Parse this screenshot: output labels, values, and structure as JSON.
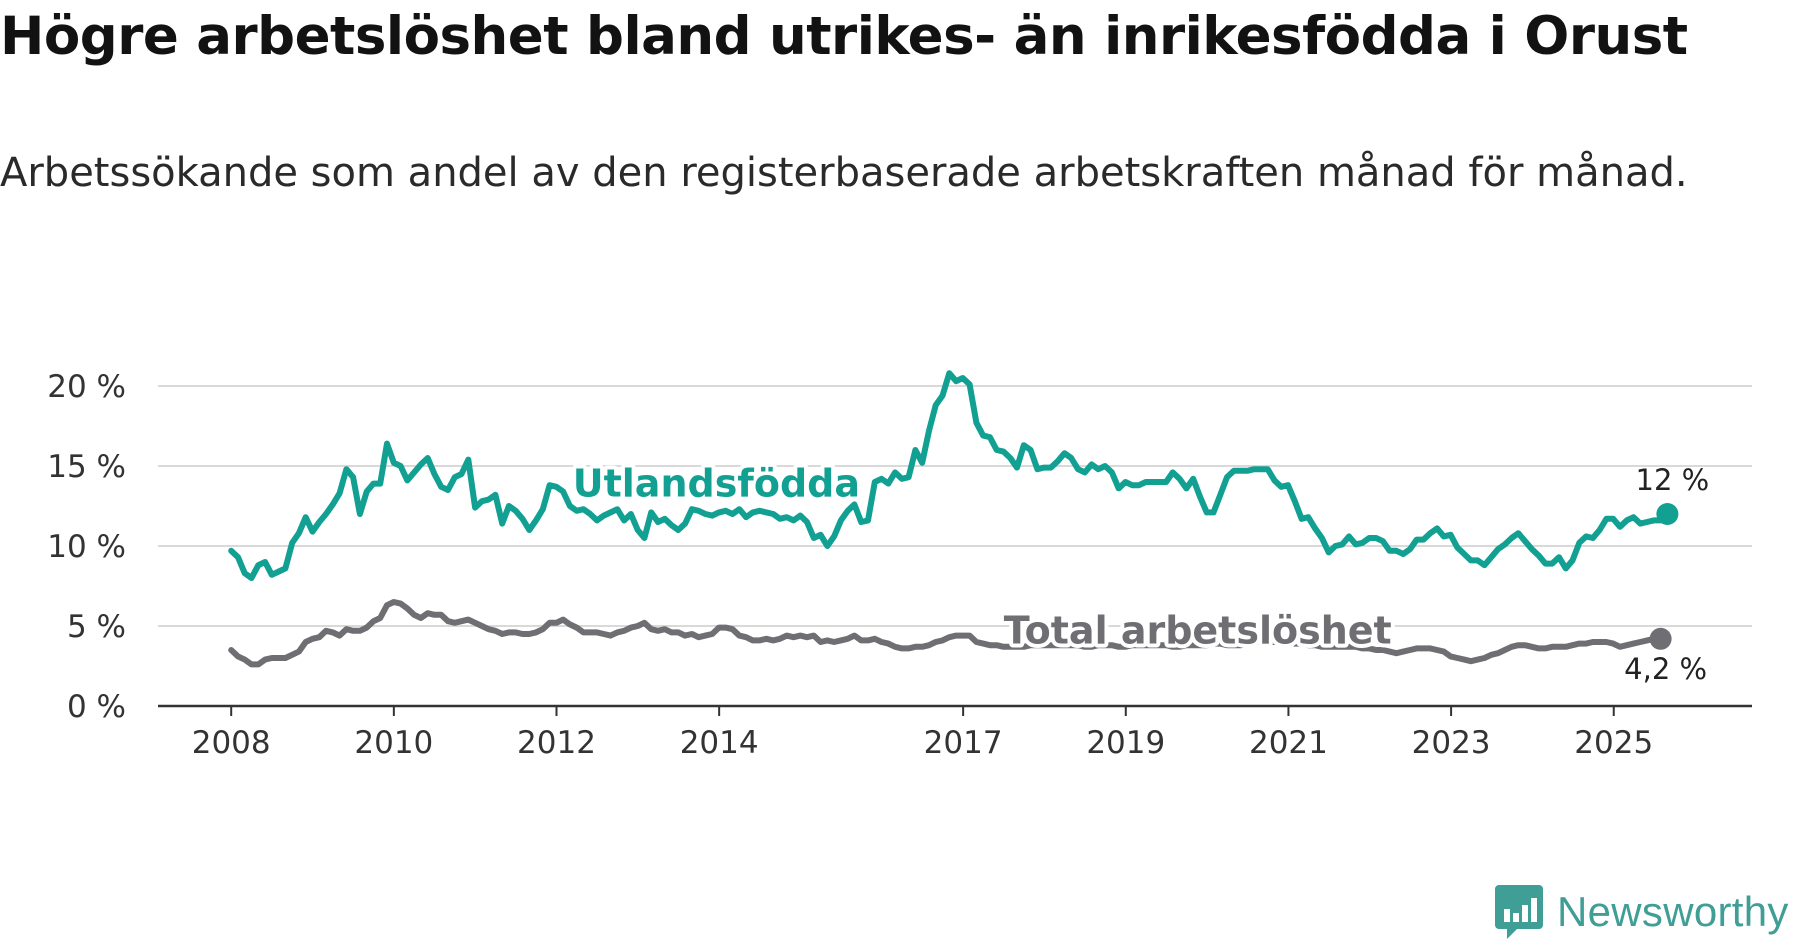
{
  "title": "Högre arbetslöshet bland utrikes- än inrikesfödda i Orust",
  "subtitle": "Arbetssökande som andel av den registerbaserade arbetskraften månad för månad.",
  "brand": {
    "name": "Newsworthy",
    "icon": "newsworthy-logo-icon"
  },
  "colors": {
    "foreign": "#12a093",
    "total": "#6f6e73",
    "grid": "#d9d9d9",
    "axis": "#333333"
  },
  "chart_data": {
    "type": "line",
    "title": "Högre arbetslöshet bland utrikes- än inrikesfödda i Orust",
    "xlabel": "",
    "ylabel": "",
    "x_start": 2008.0,
    "x_step": 0.0833,
    "xlim": [
      2007.1,
      2026.7
    ],
    "ylim": [
      0,
      20
    ],
    "y_ticks": [
      0,
      5,
      10,
      15,
      20
    ],
    "y_tick_labels": [
      "0 %",
      "5 %",
      "10 %",
      "15 %",
      "20 %"
    ],
    "x_ticks": [
      2008,
      2010,
      2012,
      2014,
      2017,
      2019,
      2021,
      2023,
      2025
    ],
    "x_tick_labels": [
      "2008",
      "2010",
      "2012",
      "2014",
      "2017",
      "2019",
      "2021",
      "2023",
      "2025"
    ],
    "grid": true,
    "series": [
      {
        "name": "Utlandsfödda",
        "label": "Utlandsfödda",
        "end_label": "12 %",
        "values": [
          9.7,
          9.3,
          8.3,
          8.0,
          8.8,
          9.0,
          8.2,
          8.4,
          8.6,
          10.2,
          10.8,
          11.8,
          10.9,
          11.5,
          12.0,
          12.6,
          13.3,
          14.8,
          14.3,
          12.0,
          13.4,
          13.9,
          13.9,
          16.4,
          15.2,
          15.0,
          14.1,
          14.6,
          15.1,
          15.5,
          14.5,
          13.7,
          13.5,
          14.3,
          14.5,
          15.4,
          12.4,
          12.8,
          12.9,
          13.2,
          11.4,
          12.5,
          12.2,
          11.7,
          11.0,
          11.6,
          12.3,
          13.8,
          13.7,
          13.4,
          12.5,
          12.2,
          12.3,
          12.0,
          11.6,
          11.9,
          12.1,
          12.3,
          11.6,
          12.0,
          11.0,
          10.5,
          12.1,
          11.5,
          11.7,
          11.3,
          11.0,
          11.4,
          12.3,
          12.2,
          12.0,
          11.9,
          12.1,
          12.2,
          12.0,
          12.3,
          11.8,
          12.1,
          12.2,
          12.1,
          12.0,
          11.7,
          11.8,
          11.6,
          11.9,
          11.5,
          10.5,
          10.7,
          10.0,
          10.6,
          11.6,
          12.2,
          12.6,
          11.5,
          11.6,
          14.0,
          14.2,
          13.9,
          14.6,
          14.2,
          14.3,
          16.0,
          15.2,
          17.2,
          18.8,
          19.4,
          20.8,
          20.3,
          20.5,
          20.1,
          17.7,
          16.9,
          16.8,
          16.0,
          15.9,
          15.5,
          14.9,
          16.3,
          16.0,
          14.8,
          14.9,
          14.9,
          15.3,
          15.8,
          15.5,
          14.8,
          14.6,
          15.1,
          14.8,
          15.0,
          14.6,
          13.6,
          14.0,
          13.8,
          13.8,
          14.0,
          14.0,
          14.0,
          14.0,
          14.6,
          14.2,
          13.6,
          14.2,
          13.1,
          12.1,
          12.1,
          13.2,
          14.3,
          14.7,
          14.7,
          14.7,
          14.8,
          14.8,
          14.8,
          14.1,
          13.7,
          13.8,
          12.8,
          11.7,
          11.8,
          11.1,
          10.5,
          9.6,
          10.0,
          10.1,
          10.6,
          10.1,
          10.2,
          10.5,
          10.5,
          10.3,
          9.7,
          9.7,
          9.5,
          9.8,
          10.4,
          10.4,
          10.8,
          11.1,
          10.6,
          10.7,
          9.9,
          9.5,
          9.1,
          9.1,
          8.8,
          9.3,
          9.8,
          10.1,
          10.5,
          10.8,
          10.3,
          9.8,
          9.4,
          8.9,
          8.9,
          9.3,
          8.6,
          9.1,
          10.2,
          10.6,
          10.5,
          11.0,
          11.7,
          11.7,
          11.2,
          11.6,
          11.8,
          11.4,
          11.5,
          11.6,
          11.6,
          12.0
        ]
      },
      {
        "name": "Total arbetslöshet",
        "label": "Total arbetslöshet",
        "end_label": "4,2 %",
        "values": [
          3.5,
          3.1,
          2.9,
          2.6,
          2.6,
          2.9,
          3.0,
          3.0,
          3.0,
          3.2,
          3.4,
          4.0,
          4.2,
          4.3,
          4.7,
          4.6,
          4.4,
          4.8,
          4.7,
          4.7,
          4.9,
          5.3,
          5.5,
          6.3,
          6.5,
          6.4,
          6.1,
          5.7,
          5.5,
          5.8,
          5.7,
          5.7,
          5.3,
          5.2,
          5.3,
          5.4,
          5.2,
          5.0,
          4.8,
          4.7,
          4.5,
          4.6,
          4.6,
          4.5,
          4.5,
          4.6,
          4.8,
          5.2,
          5.2,
          5.4,
          5.1,
          4.9,
          4.6,
          4.6,
          4.6,
          4.5,
          4.4,
          4.6,
          4.7,
          4.9,
          5.0,
          5.2,
          4.8,
          4.7,
          4.8,
          4.6,
          4.6,
          4.4,
          4.5,
          4.3,
          4.4,
          4.5,
          4.9,
          4.9,
          4.8,
          4.4,
          4.3,
          4.1,
          4.1,
          4.2,
          4.1,
          4.2,
          4.4,
          4.3,
          4.4,
          4.3,
          4.4,
          4.0,
          4.1,
          4.0,
          4.1,
          4.2,
          4.4,
          4.1,
          4.1,
          4.2,
          4.0,
          3.9,
          3.7,
          3.6,
          3.6,
          3.7,
          3.7,
          3.8,
          4.0,
          4.1,
          4.3,
          4.4,
          4.4,
          4.4,
          4.0,
          3.9,
          3.8,
          3.8,
          3.7,
          3.7,
          3.7,
          3.7,
          3.8,
          3.8,
          3.8,
          3.8,
          3.8,
          3.8,
          3.8,
          3.8,
          3.7,
          3.7,
          3.8,
          3.8,
          3.8,
          3.7,
          3.7,
          3.8,
          3.8,
          3.8,
          3.8,
          3.8,
          3.8,
          3.7,
          3.7,
          3.8,
          3.8,
          3.8,
          3.8,
          3.9,
          3.9,
          3.8,
          3.8,
          3.8,
          3.9,
          4.0,
          4.0,
          4.0,
          4.0,
          4.0,
          4.0,
          3.9,
          3.9,
          3.8,
          3.8,
          3.7,
          3.7,
          3.7,
          3.7,
          3.7,
          3.7,
          3.6,
          3.6,
          3.5,
          3.5,
          3.4,
          3.3,
          3.4,
          3.5,
          3.6,
          3.6,
          3.6,
          3.5,
          3.4,
          3.1,
          3.0,
          2.9,
          2.8,
          2.9,
          3.0,
          3.2,
          3.3,
          3.5,
          3.7,
          3.8,
          3.8,
          3.7,
          3.6,
          3.6,
          3.7,
          3.7,
          3.7,
          3.8,
          3.9,
          3.9,
          4.0,
          4.0,
          4.0,
          3.9,
          3.7,
          3.8,
          3.9,
          4.0,
          4.1,
          4.2,
          4.2
        ]
      }
    ]
  }
}
